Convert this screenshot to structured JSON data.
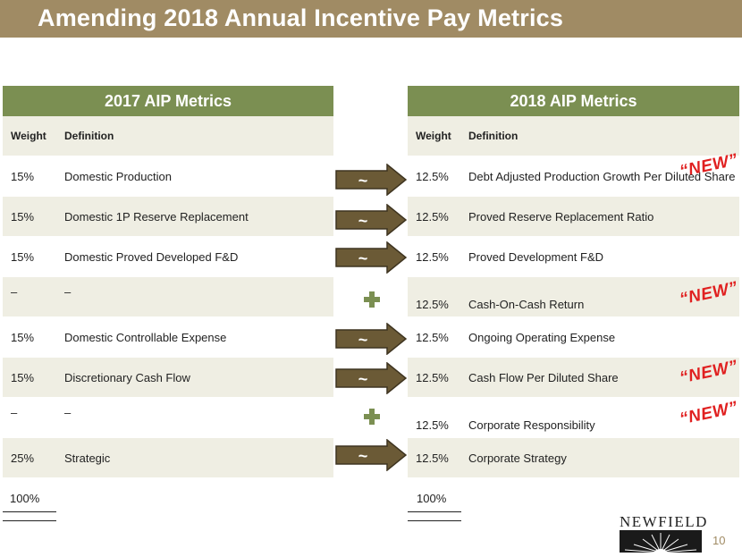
{
  "title": "Amending 2018 Annual Incentive Pay Metrics",
  "left_table": {
    "header": "2017 AIP Metrics",
    "col_weight": "Weight",
    "col_definition": "Definition",
    "rows": [
      {
        "weight": "15%",
        "definition": "Domestic Production"
      },
      {
        "weight": "15%",
        "definition": "Domestic 1P Reserve Replacement"
      },
      {
        "weight": "15%",
        "definition": "Domestic Proved Developed F&D"
      },
      {
        "weight": "–",
        "definition": "–"
      },
      {
        "weight": "15%",
        "definition": "Domestic Controllable Expense"
      },
      {
        "weight": "15%",
        "definition": "Discretionary Cash Flow"
      },
      {
        "weight": "–",
        "definition": "–"
      },
      {
        "weight": "25%",
        "definition": "Strategic"
      }
    ],
    "total": "100%"
  },
  "right_table": {
    "header": "2018 AIP Metrics",
    "col_weight": "Weight",
    "col_definition": "Definition",
    "rows": [
      {
        "weight": "12.5%",
        "definition": "Debt Adjusted Production Growth Per Diluted Share"
      },
      {
        "weight": "12.5%",
        "definition": "Proved Reserve Replacement Ratio"
      },
      {
        "weight": "12.5%",
        "definition": "Proved Development F&D"
      },
      {
        "weight": "12.5%",
        "definition": "Cash-On-Cash Return"
      },
      {
        "weight": "12.5%",
        "definition": "Ongoing Operating Expense"
      },
      {
        "weight": "12.5%",
        "definition": "Cash Flow Per Diluted Share"
      },
      {
        "weight": "12.5%",
        "definition": "Corporate Responsibility"
      },
      {
        "weight": "12.5%",
        "definition": "Corporate Strategy"
      }
    ],
    "total": "100%"
  },
  "connector_symbol": "~",
  "new_label": "“NEW”",
  "logo": "NEWFIELD",
  "page_number": "10",
  "colors": {
    "title_bar": "#a08b64",
    "table_header": "#7b8f52",
    "arrow": "#6b5a36",
    "plus": "#7b8f52",
    "new": "#e02020"
  }
}
